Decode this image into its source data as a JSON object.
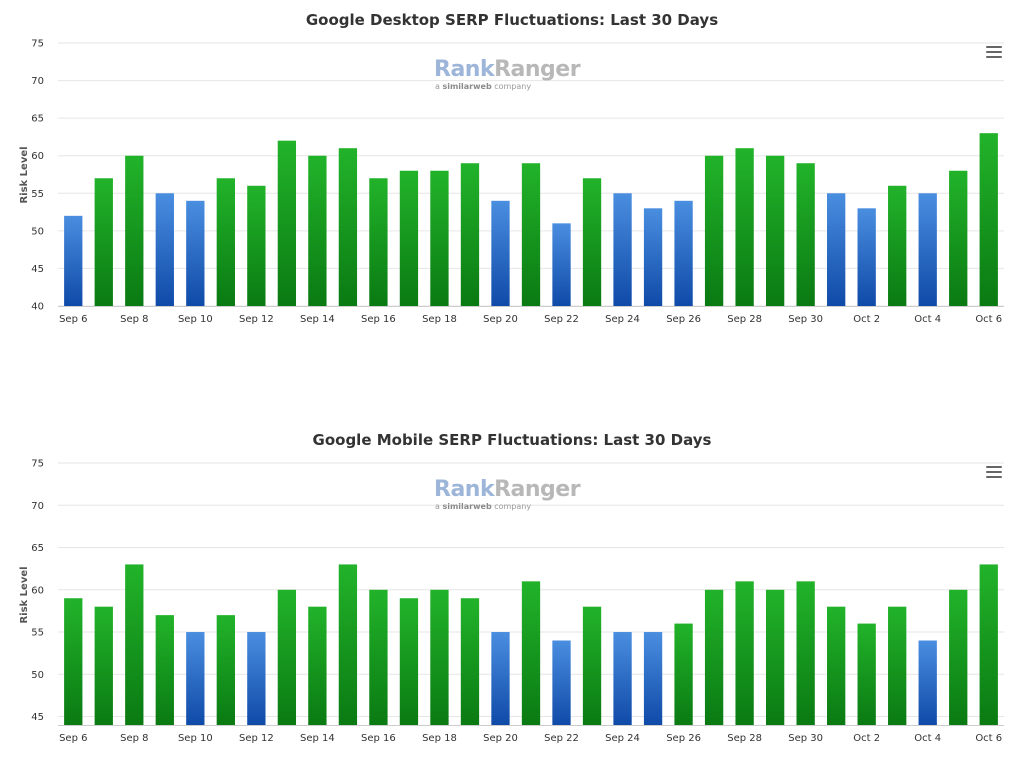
{
  "colors": {
    "green_top": "#22b32a",
    "green_bottom": "#0a7a12",
    "blue_top": "#4a8ee0",
    "blue_bottom": "#0f4aa8",
    "grid": "#e6e6e6"
  },
  "logo": {
    "brand_a": "Rank",
    "brand_b": "Ranger",
    "tagline_pre": "a ",
    "tagline_brand": "similarweb",
    "tagline_post": " company"
  },
  "menu_icon": "hamburger-menu-icon",
  "chart_data": [
    {
      "type": "bar",
      "title": "Google Desktop SERP Fluctuations: Last 30 Days",
      "ylabel": "Risk Level",
      "xlabel": "",
      "ylim": [
        40,
        75
      ],
      "yticks": [
        40,
        45,
        50,
        55,
        60,
        65,
        70,
        75
      ],
      "grid": true,
      "categories": [
        "Sep 6",
        "Sep 7",
        "Sep 8",
        "Sep 9",
        "Sep 10",
        "Sep 11",
        "Sep 12",
        "Sep 13",
        "Sep 14",
        "Sep 15",
        "Sep 16",
        "Sep 17",
        "Sep 18",
        "Sep 19",
        "Sep 20",
        "Sep 21",
        "Sep 22",
        "Sep 23",
        "Sep 24",
        "Sep 25",
        "Sep 26",
        "Sep 27",
        "Sep 28",
        "Sep 29",
        "Sep 30",
        "Oct 1",
        "Oct 2",
        "Oct 3",
        "Oct 4",
        "Oct 5",
        "Oct 6"
      ],
      "xtick_labels": [
        "Sep 6",
        "Sep 8",
        "Sep 10",
        "Sep 12",
        "Sep 14",
        "Sep 16",
        "Sep 18",
        "Sep 20",
        "Sep 22",
        "Sep 24",
        "Sep 26",
        "Sep 28",
        "Sep 30",
        "Oct 2",
        "Oct 4",
        "Oct 6"
      ],
      "values": [
        52,
        57,
        60,
        55,
        54,
        57,
        56,
        62,
        60,
        61,
        57,
        58,
        58,
        59,
        54,
        59,
        51,
        57,
        55,
        53,
        54,
        60,
        61,
        60,
        59,
        55,
        53,
        56,
        55,
        58,
        63
      ],
      "bar_colors": [
        "blue",
        "green",
        "green",
        "blue",
        "blue",
        "green",
        "green",
        "green",
        "green",
        "green",
        "green",
        "green",
        "green",
        "green",
        "blue",
        "green",
        "blue",
        "green",
        "blue",
        "blue",
        "blue",
        "green",
        "green",
        "green",
        "green",
        "blue",
        "blue",
        "green",
        "blue",
        "green",
        "green"
      ]
    },
    {
      "type": "bar",
      "title": "Google Mobile SERP Fluctuations: Last 30 Days",
      "ylabel": "Risk Level",
      "xlabel": "",
      "ylim": [
        44,
        75
      ],
      "yticks": [
        45,
        50,
        55,
        60,
        65,
        70,
        75
      ],
      "grid": true,
      "categories": [
        "Sep 6",
        "Sep 7",
        "Sep 8",
        "Sep 9",
        "Sep 10",
        "Sep 11",
        "Sep 12",
        "Sep 13",
        "Sep 14",
        "Sep 15",
        "Sep 16",
        "Sep 17",
        "Sep 18",
        "Sep 19",
        "Sep 20",
        "Sep 21",
        "Sep 22",
        "Sep 23",
        "Sep 24",
        "Sep 25",
        "Sep 26",
        "Sep 27",
        "Sep 28",
        "Sep 29",
        "Sep 30",
        "Oct 1",
        "Oct 2",
        "Oct 3",
        "Oct 4",
        "Oct 5",
        "Oct 6"
      ],
      "xtick_labels": [
        "Sep 6",
        "Sep 8",
        "Sep 10",
        "Sep 12",
        "Sep 14",
        "Sep 16",
        "Sep 18",
        "Sep 20",
        "Sep 22",
        "Sep 24",
        "Sep 26",
        "Sep 28",
        "Sep 30",
        "Oct 2",
        "Oct 4",
        "Oct 6"
      ],
      "values": [
        59,
        58,
        63,
        57,
        55,
        57,
        55,
        60,
        58,
        63,
        60,
        59,
        60,
        59,
        55,
        61,
        54,
        58,
        55,
        55,
        56,
        60,
        61,
        60,
        61,
        58,
        56,
        58,
        54,
        60,
        63
      ],
      "bar_colors": [
        "green",
        "green",
        "green",
        "green",
        "blue",
        "green",
        "blue",
        "green",
        "green",
        "green",
        "green",
        "green",
        "green",
        "green",
        "blue",
        "green",
        "blue",
        "green",
        "blue",
        "blue",
        "green",
        "green",
        "green",
        "green",
        "green",
        "green",
        "green",
        "green",
        "blue",
        "green",
        "green"
      ]
    }
  ]
}
